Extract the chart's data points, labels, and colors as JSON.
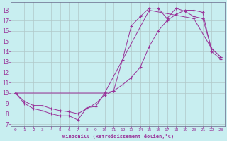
{
  "xlabel": "Windchill (Refroidissement éolien,°C)",
  "background_color": "#c8eef0",
  "grid_color": "#b0c8c8",
  "line_color": "#993399",
  "xlim": [
    -0.5,
    23.5
  ],
  "ylim": [
    6.8,
    18.8
  ],
  "xticks": [
    0,
    1,
    2,
    3,
    4,
    5,
    6,
    7,
    8,
    9,
    10,
    11,
    12,
    13,
    14,
    15,
    16,
    17,
    18,
    19,
    20,
    21,
    22,
    23
  ],
  "yticks": [
    7,
    8,
    9,
    10,
    11,
    12,
    13,
    14,
    15,
    16,
    17,
    18
  ],
  "line1_x": [
    0,
    1,
    2,
    3,
    4,
    5,
    6,
    7,
    8,
    9,
    10,
    11,
    12,
    13,
    14,
    15,
    16,
    17,
    18,
    19,
    20,
    21,
    22,
    23
  ],
  "line1_y": [
    10,
    9,
    8.5,
    8.3,
    8.0,
    7.8,
    7.8,
    7.4,
    8.6,
    8.7,
    10.0,
    10.2,
    13.2,
    16.5,
    17.4,
    18.2,
    18.2,
    17.2,
    18.2,
    17.9,
    17.4,
    17.2,
    14.3,
    13.5
  ],
  "line2_x": [
    0,
    1,
    2,
    3,
    4,
    5,
    6,
    7,
    8,
    9,
    10,
    11,
    12,
    13,
    14,
    15,
    16,
    17,
    18,
    19,
    20,
    21,
    22,
    23
  ],
  "line2_y": [
    10,
    9.2,
    8.8,
    8.8,
    8.5,
    8.3,
    8.2,
    8.0,
    8.5,
    9.0,
    9.8,
    10.2,
    10.8,
    11.5,
    12.5,
    14.5,
    16.0,
    17.0,
    17.6,
    18.0,
    18.0,
    17.8,
    14.0,
    13.3
  ],
  "line3_x": [
    0,
    10,
    15,
    20,
    22,
    23
  ],
  "line3_y": [
    10,
    10,
    18,
    17.2,
    14.3,
    13.5
  ]
}
